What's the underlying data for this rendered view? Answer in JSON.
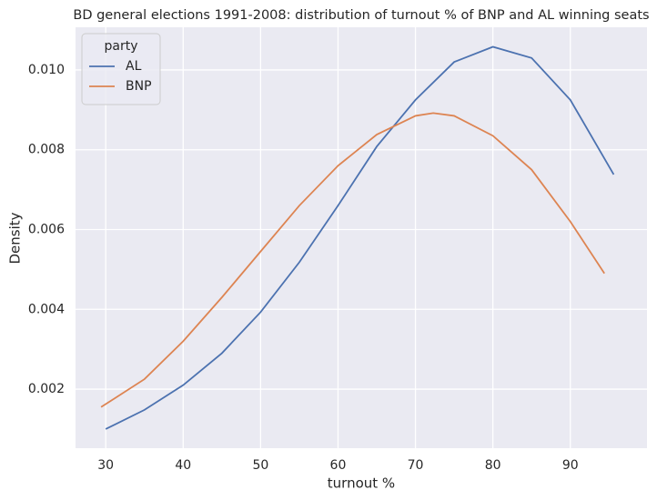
{
  "chart_data": {
    "type": "line",
    "title": "BD general elections 1991-2008: distribution of turnout % of BNP and AL winning seats",
    "x_label": "turnout %",
    "y_label": "Density",
    "legend_title": "party",
    "legend": "upper left",
    "grid": true,
    "xlim": [
      26.1,
      99.9
    ],
    "xticks": [
      30,
      40,
      50,
      60,
      70,
      80,
      90
    ],
    "ylim": [
      0.00052,
      0.01107
    ],
    "yticks": [
      0.002,
      0.004,
      0.006,
      0.008,
      {
        "value": 0.01,
        "label": "0.010"
      }
    ],
    "series": [
      {
        "name": "AL",
        "color": "#4c72b0",
        "x": [
          30,
          35,
          40,
          45,
          50,
          55,
          60,
          65,
          70,
          75,
          80,
          85,
          90,
          95.6
        ],
        "values": [
          0.001,
          0.00148,
          0.0021,
          0.0029,
          0.00393,
          0.00518,
          0.0066,
          0.00808,
          0.00925,
          0.0102,
          0.01058,
          0.0103,
          0.00925,
          0.00738
        ]
      },
      {
        "name": "BNP",
        "color": "#dd8452",
        "x": [
          29.4,
          35,
          40,
          45,
          50,
          55,
          60,
          65,
          70,
          72.3,
          75,
          80,
          85,
          90,
          94.4
        ],
        "values": [
          0.00155,
          0.00225,
          0.0032,
          0.0043,
          0.00545,
          0.0066,
          0.0076,
          0.00838,
          0.00885,
          0.00892,
          0.00885,
          0.00835,
          0.0075,
          0.0062,
          0.0049
        ]
      }
    ]
  }
}
